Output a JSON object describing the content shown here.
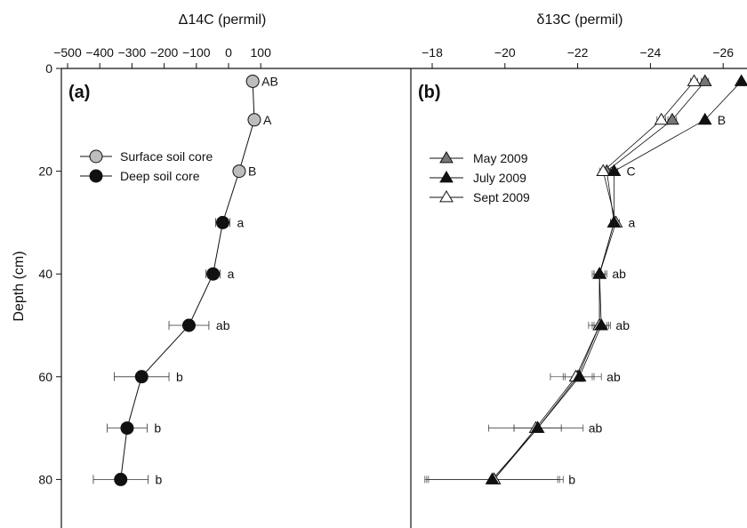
{
  "y_axis": {
    "label": "Depth (cm)",
    "ticks": [
      0,
      20,
      40,
      60,
      80
    ],
    "range": [
      0,
      90
    ],
    "direction": "down"
  },
  "panel_a": {
    "title": "Δ14C (permil)",
    "panel_label": "(a)"
  },
  "panel_b": {
    "title": "δ13C (permil)",
    "panel_label": "(b)"
  },
  "chart_data": [
    {
      "type": "scatter",
      "panel": "(a)",
      "title": "Δ14C (permil)",
      "ylabel": "Depth (cm)",
      "xlim": [
        -500,
        120
      ],
      "ylim": [
        0,
        90
      ],
      "x_ticks": [
        -500,
        -400,
        -300,
        -200,
        -100,
        0,
        100
      ],
      "y_ticks": [
        0,
        20,
        40,
        60,
        80
      ],
      "x_axis_position": "top",
      "y_inverted": true,
      "connected": true,
      "legend": {
        "position": "upper-left",
        "entries": [
          "Surface soil core",
          "Deep soil core"
        ]
      },
      "series": [
        {
          "name": "Surface soil core",
          "marker": "circle",
          "fill": "#bdbdbd",
          "points": [
            {
              "depth": 2.5,
              "value": 75,
              "err": 0,
              "letter": "AB"
            },
            {
              "depth": 10,
              "value": 80,
              "err": 0,
              "letter": "A"
            },
            {
              "depth": 20,
              "value": 33,
              "err": 0,
              "letter": "B"
            }
          ]
        },
        {
          "name": "Deep soil core",
          "marker": "circle",
          "fill": "#111111",
          "points": [
            {
              "depth": 30,
              "value": -18,
              "err": 22,
              "letter": "a"
            },
            {
              "depth": 40,
              "value": -48,
              "err": 22,
              "letter": "a"
            },
            {
              "depth": 50,
              "value": -123,
              "err": 62,
              "letter": "ab"
            },
            {
              "depth": 60,
              "value": -270,
              "err": 85,
              "letter": "b"
            },
            {
              "depth": 70,
              "value": -315,
              "err": 62,
              "letter": "b"
            },
            {
              "depth": 80,
              "value": -335,
              "err": 85,
              "letter": "b"
            }
          ]
        }
      ]
    },
    {
      "type": "line",
      "panel": "(b)",
      "title": "δ13C (permil)",
      "xlim": [
        -18,
        -26.65
      ],
      "ylim": [
        0,
        90
      ],
      "x_ticks": [
        -18,
        -20,
        -22,
        -24,
        -26
      ],
      "x_axis_position": "top",
      "x_reversed": true,
      "y_inverted": true,
      "legend": {
        "position": "middle-left",
        "entries": [
          "May 2009",
          "July 2009",
          "Sept 2009"
        ]
      },
      "depths": [
        2.5,
        10,
        20,
        30,
        40,
        50,
        60,
        70,
        80
      ],
      "letters": [
        "",
        "B",
        "C",
        "a",
        "ab",
        "ab",
        "ab",
        "ab",
        "b"
      ],
      "series": [
        {
          "name": "May 2009",
          "marker": "triangle",
          "fill": "#777777",
          "values": [
            -25.5,
            -24.6,
            -22.8,
            -23.0,
            -22.6,
            -22.6,
            -22.0,
            -20.9,
            -19.7
          ],
          "err": [
            0.1,
            0.12,
            0.1,
            0.1,
            0.15,
            0.2,
            0.4,
            0.65,
            1.8
          ]
        },
        {
          "name": "July 2009",
          "marker": "triangle",
          "fill": "#111111",
          "values": [
            -26.5,
            -25.5,
            -23.0,
            -23.0,
            -22.6,
            -22.65,
            -22.05,
            -20.9,
            -19.65
          ],
          "err": [
            0.05,
            0.05,
            0.1,
            0.1,
            0.15,
            0.2,
            0.4,
            0.65,
            1.8
          ]
        },
        {
          "name": "Sept 2009",
          "marker": "triangle",
          "fill": "#ffffff",
          "values": [
            -25.2,
            -24.3,
            -22.7,
            -23.05,
            -22.6,
            -22.6,
            -21.95,
            -20.85,
            -19.7
          ],
          "err": [
            0.1,
            0.12,
            0.1,
            0.1,
            0.2,
            0.3,
            0.7,
            1.3,
            1.9
          ]
        }
      ]
    }
  ]
}
